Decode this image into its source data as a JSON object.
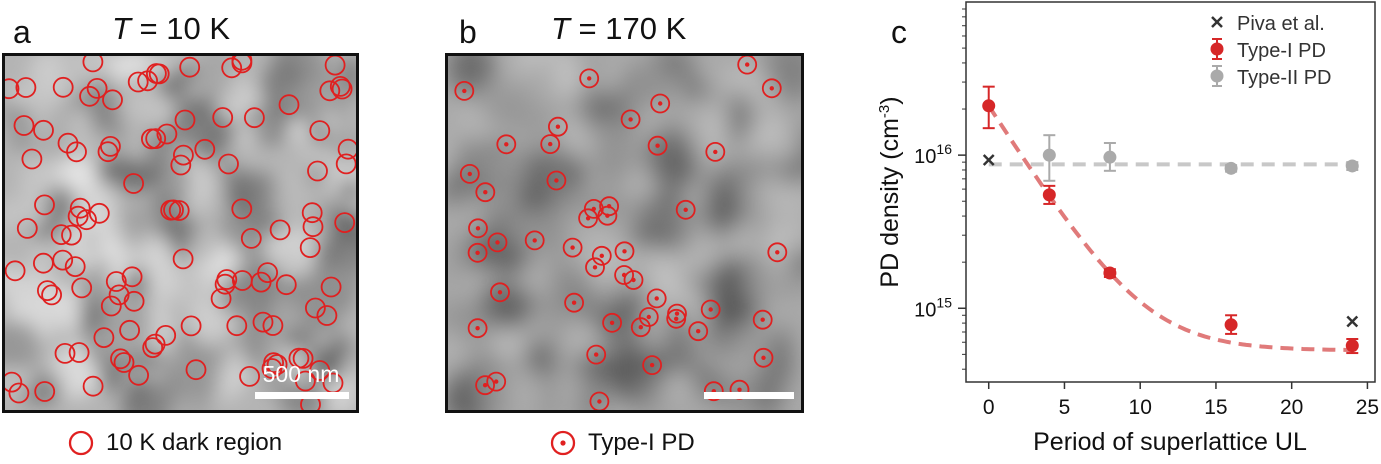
{
  "panel_a": {
    "letter": "a",
    "temp_var": "T",
    "temp_value": " = 10 K",
    "scalebar_label": "500 nm",
    "legend_label": "10 K dark region"
  },
  "panel_b": {
    "letter": "b",
    "temp_var": "T",
    "temp_value": " = 170 K",
    "legend_label": "Type-I PD"
  },
  "panel_c": {
    "letter": "c",
    "chart_data": {
      "type": "scatter",
      "xlabel": "Period of superlattice UL",
      "ylabel": "PD density (cm",
      "ylabel_sup": "-3",
      "ylabel_close": ")",
      "ylog": true,
      "xlim": [
        -1.5,
        25.5
      ],
      "ylim": [
        330000000000000.0,
        1e+17
      ],
      "xticks": [
        0,
        5,
        10,
        15,
        20,
        25
      ],
      "yticks": [
        {
          "value": 1000000000000000.0,
          "base": "10",
          "exp": "15"
        },
        {
          "value": 1e+16,
          "base": "10",
          "exp": "16"
        }
      ],
      "legend_position": "top-right",
      "series": [
        {
          "name": "Piva et al.",
          "marker": "x",
          "color": "#333333",
          "points": [
            {
              "x": 0,
              "y": 9300000000000000.0
            },
            {
              "x": 24,
              "y": 820000000000000.0
            }
          ]
        },
        {
          "name": "Type-I PD",
          "marker": "circle",
          "color": "#d62728",
          "points": [
            {
              "x": 0,
              "y": 2.1e+16,
              "ylo": 1.5e+16,
              "yhi": 2.8e+16
            },
            {
              "x": 4,
              "y": 5500000000000000.0,
              "ylo": 4800000000000000.0,
              "yhi": 6300000000000000.0
            },
            {
              "x": 8,
              "y": 1700000000000000.0,
              "ylo": 1600000000000000.0,
              "yhi": 1800000000000000.0
            },
            {
              "x": 16,
              "y": 780000000000000.0,
              "ylo": 680000000000000.0,
              "yhi": 900000000000000.0
            },
            {
              "x": 24,
              "y": 570000000000000.0,
              "ylo": 510000000000000.0,
              "yhi": 630000000000000.0
            }
          ]
        },
        {
          "name": "Type-II PD",
          "marker": "circle",
          "color": "#aaaaaa",
          "points": [
            {
              "x": 4,
              "y": 1e+16,
              "ylo": 6800000000000000.0,
              "yhi": 1.35e+16
            },
            {
              "x": 8,
              "y": 9700000000000000.0,
              "ylo": 7900000000000000.0,
              "yhi": 1.2e+16
            },
            {
              "x": 16,
              "y": 8200000000000000.0,
              "ylo": 7800000000000000.0,
              "yhi": 8600000000000000.0
            },
            {
              "x": 24,
              "y": 8500000000000000.0,
              "ylo": 8000000000000000.0,
              "yhi": 9000000000000000.0
            }
          ]
        }
      ],
      "fits": [
        {
          "series": "Type-I PD",
          "style": "dashed",
          "color": "#e07a7a",
          "form": "exponential decay"
        },
        {
          "series": "Type-II PD",
          "style": "dashed",
          "color": "#c8c8c8",
          "form": "constant",
          "value": 8700000000000000.0
        }
      ]
    }
  },
  "colors": {
    "marker_red": "#e02020",
    "frame": "#111111"
  }
}
